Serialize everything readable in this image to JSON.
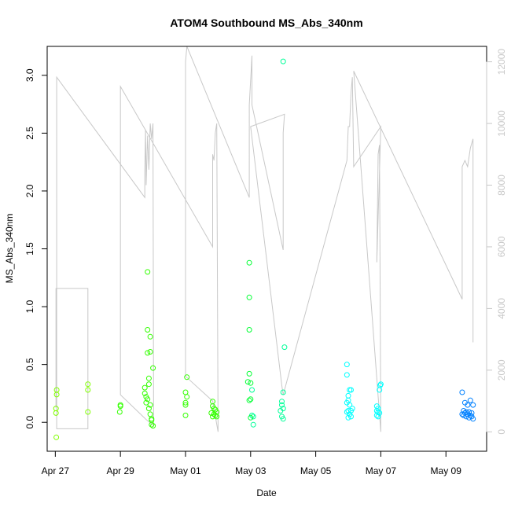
{
  "chart_data": {
    "type": "scatter",
    "title": "ATOM4 Southbound MS_Abs_340nm",
    "xlabel": "Date",
    "ylabel": "MS_Abs_340nm",
    "xlim": [
      "2021-04-26T18:00",
      "2021-05-10T06:00"
    ],
    "ylim": [
      -0.25,
      3.25
    ],
    "x_ticks": [
      {
        "date": "2021-04-27",
        "label": "Apr 27"
      },
      {
        "date": "2021-04-29",
        "label": "Apr 29"
      },
      {
        "date": "2021-05-01",
        "label": "May 01"
      },
      {
        "date": "2021-05-03",
        "label": "May 03"
      },
      {
        "date": "2021-05-05",
        "label": "May 05"
      },
      {
        "date": "2021-05-07",
        "label": "May 07"
      },
      {
        "date": "2021-05-09",
        "label": "May 09"
      }
    ],
    "y_ticks": [
      "0.0",
      "0.5",
      "1.0",
      "1.5",
      "2.0",
      "2.5",
      "3.0"
    ],
    "y2_ticks": [
      "0",
      "2000",
      "4000",
      "6000",
      "8000",
      "10000",
      "12000"
    ],
    "y2lim": [
      -630,
      12500
    ],
    "grid": false,
    "legend": "none",
    "point_colors": [
      {
        "date": "2021-04-27",
        "color": "#80ff00"
      },
      {
        "date": "2021-05-01",
        "color": "#33ff00"
      },
      {
        "date": "2021-05-02",
        "color": "#00ff33"
      },
      {
        "date": "2021-05-04",
        "color": "#00ff99"
      },
      {
        "date": "2021-05-06",
        "color": "#00ffff"
      },
      {
        "date": "2021-05-10",
        "color": "#0080ff"
      }
    ],
    "line_color": "#c8c8c8",
    "series": [
      {
        "type": "scatter",
        "points": [
          [
            "2021-04-27T01:00",
            0.28
          ],
          [
            "2021-04-27T01:00",
            0.24
          ],
          [
            "2021-04-27T00:30",
            0.12
          ],
          [
            "2021-04-27T00:30",
            0.08
          ],
          [
            "2021-04-27T00:45",
            -0.13
          ],
          [
            "2021-04-28T00:00",
            0.33
          ],
          [
            "2021-04-28T00:00",
            0.28
          ],
          [
            "2021-04-28T00:00",
            0.09
          ],
          [
            "2021-04-29T00:00",
            0.15
          ],
          [
            "2021-04-29T00:00",
            0.14
          ],
          [
            "2021-04-28T23:30",
            0.09
          ],
          [
            "2021-04-29T20:00",
            1.3
          ],
          [
            "2021-04-29T20:00",
            0.8
          ],
          [
            "2021-04-29T22:00",
            0.74
          ],
          [
            "2021-04-29T20:00",
            0.6
          ],
          [
            "2021-04-29T22:00",
            0.61
          ],
          [
            "2021-04-30T00:00",
            0.47
          ],
          [
            "2021-04-29T21:00",
            0.38
          ],
          [
            "2021-04-29T21:00",
            0.33
          ],
          [
            "2021-04-29T18:00",
            0.3
          ],
          [
            "2021-04-29T18:00",
            0.25
          ],
          [
            "2021-04-29T19:00",
            0.22
          ],
          [
            "2021-04-29T20:00",
            0.2
          ],
          [
            "2021-04-29T19:00",
            0.17
          ],
          [
            "2021-04-29T22:00",
            0.15
          ],
          [
            "2021-04-29T21:00",
            0.12
          ],
          [
            "2021-04-29T22:00",
            0.07
          ],
          [
            "2021-04-29T23:00",
            0.03
          ],
          [
            "2021-04-29T23:00",
            0.02
          ],
          [
            "2021-04-29T23:00",
            -0.02
          ],
          [
            "2021-04-30T00:00",
            -0.03
          ],
          [
            "2021-05-01T01:00",
            0.39
          ],
          [
            "2021-05-01T00:00",
            0.26
          ],
          [
            "2021-05-01T01:00",
            0.22
          ],
          [
            "2021-05-01T00:00",
            0.17
          ],
          [
            "2021-05-01T00:00",
            0.15
          ],
          [
            "2021-05-01T00:00",
            0.06
          ],
          [
            "2021-05-01T20:00",
            0.18
          ],
          [
            "2021-05-01T20:00",
            0.14
          ],
          [
            "2021-05-01T21:00",
            0.12
          ],
          [
            "2021-05-01T22:00",
            0.11
          ],
          [
            "2021-05-01T23:00",
            0.09
          ],
          [
            "2021-05-01T19:00",
            0.08
          ],
          [
            "2021-05-01T21:00",
            0.07
          ],
          [
            "2021-05-01T22:00",
            0.06
          ],
          [
            "2021-05-01T23:00",
            0.05
          ],
          [
            "2021-05-01T20:00",
            0.05
          ],
          [
            "2021-05-02T23:00",
            1.38
          ],
          [
            "2021-05-02T23:00",
            1.08
          ],
          [
            "2021-05-02T23:00",
            0.8
          ],
          [
            "2021-05-02T23:00",
            0.42
          ],
          [
            "2021-05-02T22:00",
            0.35
          ],
          [
            "2021-05-03T00:00",
            0.34
          ],
          [
            "2021-05-03T01:00",
            0.28
          ],
          [
            "2021-05-03T00:00",
            0.2
          ],
          [
            "2021-05-02T23:00",
            0.19
          ],
          [
            "2021-05-03T01:00",
            0.06
          ],
          [
            "2021-05-03T02:00",
            0.05
          ],
          [
            "2021-05-03T00:00",
            0.04
          ],
          [
            "2021-05-03T02:00",
            -0.02
          ],
          [
            "2021-05-04T00:00",
            3.12
          ],
          [
            "2021-05-04T01:00",
            0.65
          ],
          [
            "2021-05-04T00:00",
            0.26
          ],
          [
            "2021-05-03T23:00",
            0.18
          ],
          [
            "2021-05-03T23:00",
            0.15
          ],
          [
            "2021-05-04T00:00",
            0.12
          ],
          [
            "2021-05-03T22:00",
            0.1
          ],
          [
            "2021-05-03T23:00",
            0.05
          ],
          [
            "2021-05-04T00:00",
            0.03
          ],
          [
            "2021-05-05T23:00",
            0.5
          ],
          [
            "2021-05-05T23:00",
            0.41
          ],
          [
            "2021-05-06T02:00",
            0.28
          ],
          [
            "2021-05-06T01:00",
            0.28
          ],
          [
            "2021-05-06T00:00",
            0.23
          ],
          [
            "2021-05-06T00:00",
            0.19
          ],
          [
            "2021-05-05T23:00",
            0.17
          ],
          [
            "2021-05-06T01:00",
            0.15
          ],
          [
            "2021-05-06T03:00",
            0.12
          ],
          [
            "2021-05-06T00:00",
            0.1
          ],
          [
            "2021-05-06T02:00",
            0.1
          ],
          [
            "2021-05-05T23:00",
            0.09
          ],
          [
            "2021-05-06T01:00",
            0.07
          ],
          [
            "2021-05-06T02:00",
            0.05
          ],
          [
            "2021-05-06T00:00",
            0.04
          ],
          [
            "2021-05-07T00:00",
            0.33
          ],
          [
            "2021-05-06T23:30",
            0.32
          ],
          [
            "2021-05-06T23:00",
            0.28
          ],
          [
            "2021-05-06T21:00",
            0.14
          ],
          [
            "2021-05-06T22:00",
            0.12
          ],
          [
            "2021-05-06T21:00",
            0.1
          ],
          [
            "2021-05-06T22:00",
            0.09
          ],
          [
            "2021-05-06T23:00",
            0.08
          ],
          [
            "2021-05-06T21:00",
            0.06
          ],
          [
            "2021-05-06T22:00",
            0.05
          ],
          [
            "2021-05-09T12:00",
            0.26
          ],
          [
            "2021-05-09T18:00",
            0.19
          ],
          [
            "2021-05-09T14:00",
            0.17
          ],
          [
            "2021-05-09T16:00",
            0.15
          ],
          [
            "2021-05-09T20:00",
            0.15
          ],
          [
            "2021-05-09T13:00",
            0.1
          ],
          [
            "2021-05-09T15:00",
            0.09
          ],
          [
            "2021-05-09T17:00",
            0.09
          ],
          [
            "2021-05-09T19:00",
            0.08
          ],
          [
            "2021-05-09T14:00",
            0.08
          ],
          [
            "2021-05-09T16:00",
            0.07
          ],
          [
            "2021-05-09T12:00",
            0.07
          ],
          [
            "2021-05-09T18:00",
            0.06
          ],
          [
            "2021-05-09T15:00",
            0.05
          ],
          [
            "2021-05-09T17:00",
            0.04
          ],
          [
            "2021-05-09T19:00",
            0.05
          ],
          [
            "2021-05-09T13:00",
            0.06
          ],
          [
            "2021-05-09T20:00",
            0.03
          ]
        ]
      },
      {
        "type": "line",
        "axis": "right",
        "points": [
          [
            "2021-04-27T00:00",
            800
          ],
          [
            "2021-04-27T00:30",
            800
          ],
          [
            "2021-04-27T00:30",
            4650
          ],
          [
            "2021-04-28T00:00",
            4650
          ],
          [
            "2021-04-28T00:00",
            100
          ],
          [
            "2021-04-27T01:00",
            100
          ],
          [
            "2021-04-27T01:00",
            11500
          ],
          [
            "2021-04-29T18:00",
            7600
          ],
          [
            "2021-04-29T18:00",
            8500
          ],
          [
            "2021-04-29T18:30",
            9800
          ],
          [
            "2021-04-29T19:00",
            8000
          ],
          [
            "2021-04-29T20:00",
            9600
          ],
          [
            "2021-04-29T21:00",
            8500
          ],
          [
            "2021-04-29T22:00",
            10000
          ],
          [
            "2021-04-29T23:00",
            9500
          ],
          [
            "2021-04-30T00:00",
            10000
          ],
          [
            "2021-04-30T00:30",
            200
          ],
          [
            "2021-04-29T19:00",
            400
          ],
          [
            "2021-04-29T00:00",
            1200
          ],
          [
            "2021-04-29T00:00",
            11200
          ],
          [
            "2021-05-01T20:00",
            6000
          ],
          [
            "2021-05-01T20:00",
            9000
          ],
          [
            "2021-05-01T21:00",
            8800
          ],
          [
            "2021-05-01T22:00",
            9700
          ],
          [
            "2021-05-01T23:00",
            10000
          ],
          [
            "2021-05-02T00:00",
            0
          ],
          [
            "2021-05-01T20:00",
            1000
          ],
          [
            "2021-05-01T00:00",
            1800
          ],
          [
            "2021-05-01T00:00",
            12000
          ],
          [
            "2021-05-01T01:00",
            12500
          ],
          [
            "2021-05-02T23:00",
            7600
          ],
          [
            "2021-05-02T23:00",
            10600
          ],
          [
            "2021-05-03T01:00",
            12200
          ],
          [
            "2021-05-03T01:00",
            10600
          ],
          [
            "2021-05-04T00:00",
            5900
          ],
          [
            "2021-05-04T00:00",
            9700
          ],
          [
            "2021-05-04T01:00",
            10300
          ],
          [
            "2021-05-03T00:00",
            9900
          ],
          [
            "2021-05-03T23:00",
            1500
          ],
          [
            "2021-05-04T00:00",
            1200
          ],
          [
            "2021-05-05T23:00",
            8800
          ],
          [
            "2021-05-06T00:00",
            9900
          ],
          [
            "2021-05-06T01:00",
            9900
          ],
          [
            "2021-05-06T02:00",
            11000
          ],
          [
            "2021-05-06T03:00",
            11500
          ],
          [
            "2021-05-06T04:00",
            8600
          ],
          [
            "2021-05-07T00:00",
            9900
          ],
          [
            "2021-05-06T21:00",
            5500
          ],
          [
            "2021-05-06T22:00",
            9000
          ],
          [
            "2021-05-06T23:00",
            9300
          ],
          [
            "2021-05-07T00:00",
            0
          ],
          [
            "2021-05-06T04:00",
            11700
          ],
          [
            "2021-05-09T12:00",
            4300
          ],
          [
            "2021-05-09T12:00",
            8600
          ],
          [
            "2021-05-09T14:00",
            8800
          ],
          [
            "2021-05-09T16:00",
            8600
          ],
          [
            "2021-05-09T18:00",
            9200
          ],
          [
            "2021-05-09T20:00",
            9500
          ],
          [
            "2021-05-09T20:00",
            2900
          ]
        ]
      }
    ]
  }
}
